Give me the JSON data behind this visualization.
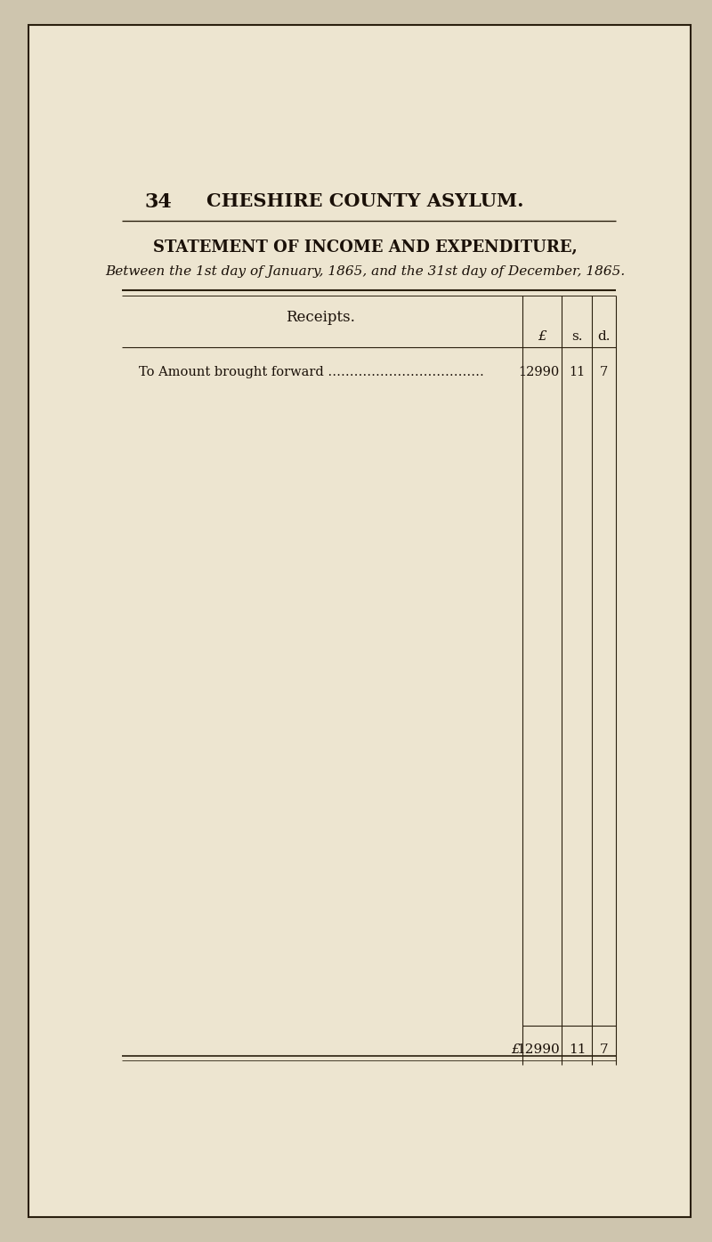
{
  "page_number": "34",
  "header_title": "CHESHIRE COUNTY ASYLUM.",
  "statement_title": "STATEMENT OF INCOME AND EXPENDITURE,",
  "statement_subtitle": "Between the 1st day of January, 1865, and the 31st day of December, 1865.",
  "section_label": "Receipts.",
  "col_headers": [
    "£",
    "s.",
    "d."
  ],
  "row_label": "To Amount brought forward ............................",
  "row_value_pounds": "12990",
  "row_value_shillings": "11",
  "row_value_pence": "7",
  "total_prefix": "£",
  "total_pounds": "12990",
  "total_shillings": "11",
  "total_pence": "7",
  "bg_color": "#ede5d0",
  "page_bg": "#cec5ae",
  "text_color": "#1a1008",
  "line_color": "#2a1f0e"
}
